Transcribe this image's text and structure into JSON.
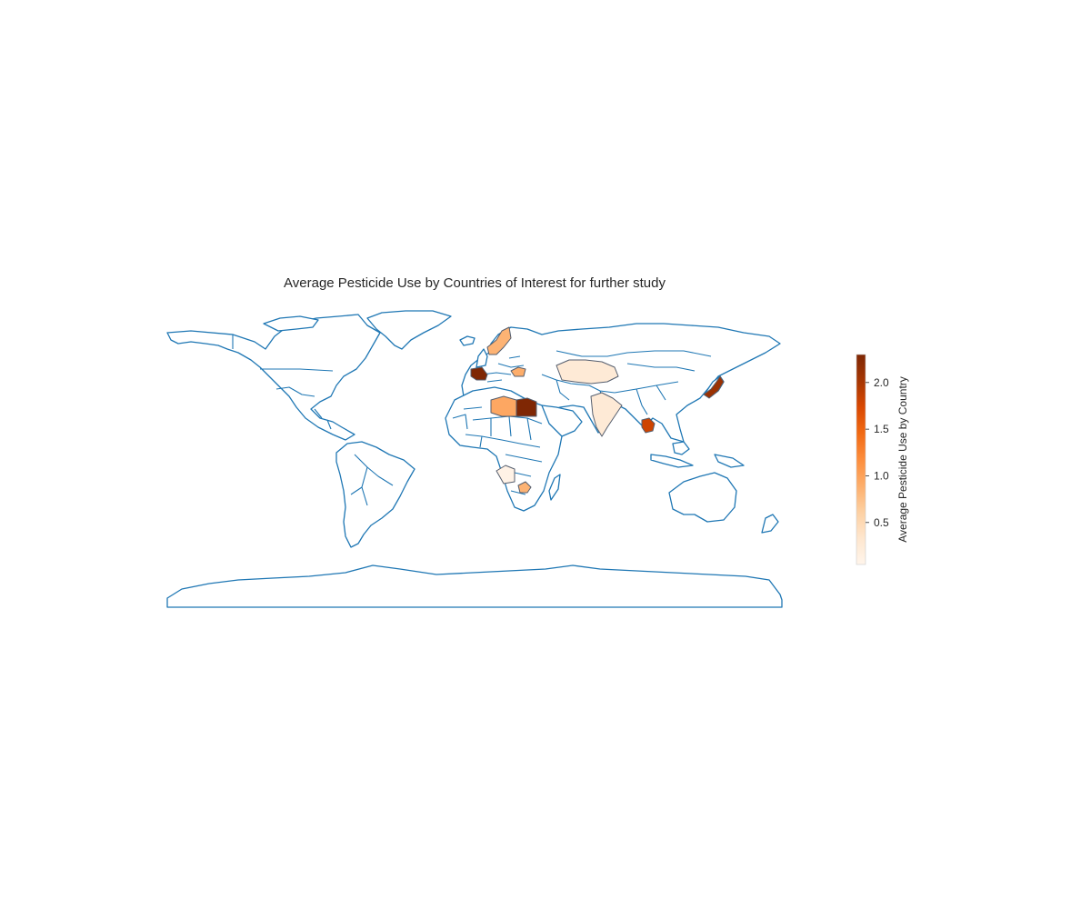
{
  "figure": {
    "title": "Average Pesticide Use by Countries of Interest for further study"
  },
  "colorbar": {
    "label": "Average Pesticide Use by Country",
    "min": 0.05,
    "max": 2.3,
    "ticks": [
      0.5,
      1.0,
      1.5,
      2.0
    ],
    "tick_labels": [
      "0.5",
      "1.0",
      "1.5",
      "2.0"
    ],
    "colormap": "Oranges",
    "colors": [
      "#fff5eb",
      "#fee6ce",
      "#fdd0a2",
      "#fdae6b",
      "#fd8d3c",
      "#f16913",
      "#d94801",
      "#a63603",
      "#7f2704"
    ]
  },
  "map": {
    "projection": "plate-carree",
    "base_fill": "#ffffff",
    "outline_color": "#1f77b4"
  },
  "chart_data": {
    "type": "choropleth",
    "title": "Average Pesticide Use by Countries of Interest for further study",
    "value_label": "Average Pesticide Use by Country",
    "range": [
      0.05,
      2.3
    ],
    "regions": [
      {
        "id": "italy",
        "value": 2.3
      },
      {
        "id": "egypt",
        "value": 2.3
      },
      {
        "id": "japan",
        "value": 2.1
      },
      {
        "id": "thailand",
        "value": 1.8
      },
      {
        "id": "libya",
        "value": 0.95
      },
      {
        "id": "sweden",
        "value": 0.85
      },
      {
        "id": "hungary",
        "value": 0.9
      },
      {
        "id": "zimbabwe",
        "value": 0.85
      },
      {
        "id": "kazakhstan",
        "value": 0.25
      },
      {
        "id": "india",
        "value": 0.25
      },
      {
        "id": "dr-congo",
        "value": 0.1
      }
    ]
  }
}
